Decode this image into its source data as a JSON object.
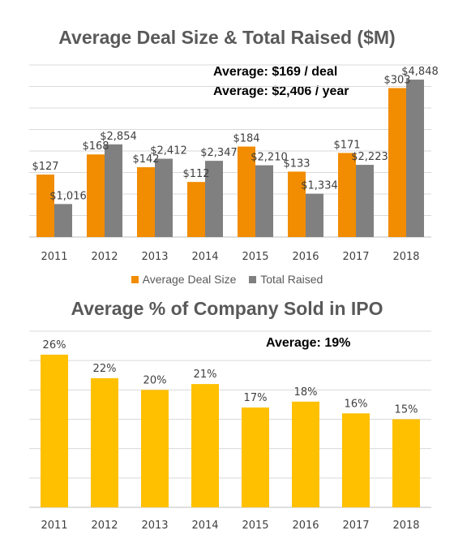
{
  "chart_data": [
    {
      "type": "bar",
      "title": "Average Deal Size & Total Raised ($M)",
      "categories": [
        "2011",
        "2012",
        "2013",
        "2014",
        "2015",
        "2016",
        "2017",
        "2018"
      ],
      "series": [
        {
          "name": "Average Deal Size",
          "color": "#F28C00",
          "values": [
            127,
            168,
            142,
            112,
            184,
            133,
            171,
            303
          ],
          "labels": [
            "$127",
            "$168",
            "$142",
            "$112",
            "$184",
            "$133",
            "$171",
            "$303"
          ]
        },
        {
          "name": "Total Raised",
          "color": "#808080",
          "values": [
            1016,
            2854,
            2412,
            2347,
            2210,
            1334,
            2223,
            4848
          ],
          "labels": [
            "$1,016",
            "$2,854",
            "$2,412",
            "$2,347",
            "$2,210",
            "$1,334",
            "$2,223",
            "$4,848"
          ]
        }
      ],
      "annotations": [
        "Average: $169 / deal",
        "Average: $2,406 / year"
      ],
      "gridlines": true,
      "legend_position": "bottom"
    },
    {
      "type": "bar",
      "title": "Average % of Company Sold in IPO",
      "categories": [
        "2011",
        "2012",
        "2013",
        "2014",
        "2015",
        "2016",
        "2017",
        "2018"
      ],
      "series": [
        {
          "color": "#FFC000",
          "values": [
            26,
            22,
            20,
            21,
            17,
            18,
            16,
            15
          ],
          "labels": [
            "26%",
            "22%",
            "20%",
            "21%",
            "17%",
            "18%",
            "16%",
            "15%"
          ]
        }
      ],
      "annotations": [
        "Average: 19%"
      ],
      "gridlines": true
    }
  ]
}
